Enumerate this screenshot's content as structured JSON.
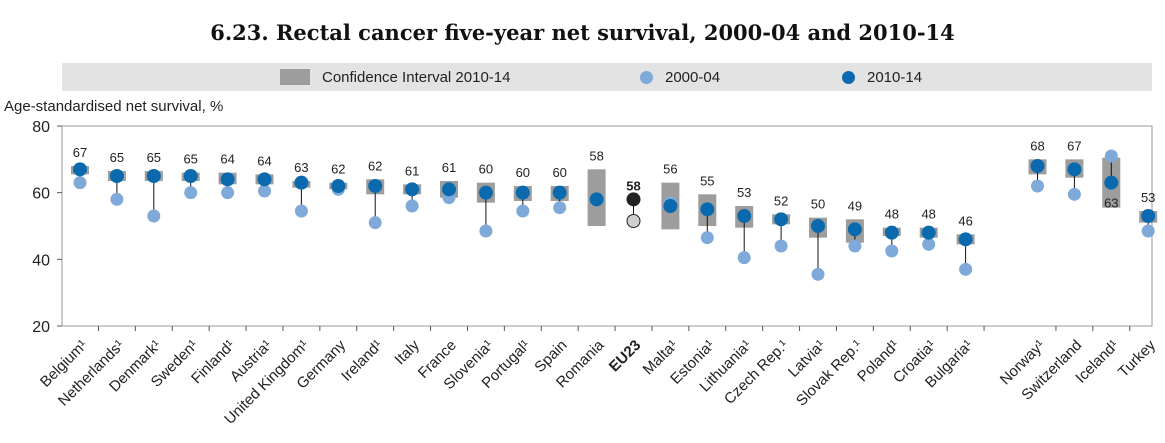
{
  "title": "6.23. Rectal cancer five-year net survival, 2000-04 and 2010-14",
  "legend": {
    "ci_label": "Confidence Interval 2010-14",
    "s1_label": "2000-04",
    "s2_label": "2010-14"
  },
  "colors": {
    "ci": "#9d9d9d",
    "s2000": "#7ea9d8",
    "s2010": "#0b6aad",
    "eu2010": "#222222",
    "eu2000": "#cfcfcf",
    "legend_bg": "#e3e3e3",
    "plot_bg": "#ffffff"
  },
  "chart_data": {
    "type": "scatter",
    "title": "6.23. Rectal cancer five-year net survival, 2000-04 and 2010-14",
    "ylabel": "Age-standardised net survival, %",
    "ylim": [
      20,
      80
    ],
    "yticks": [
      20,
      40,
      60,
      80
    ],
    "grid": false,
    "legend_position": "top",
    "highlight_category": "EU23",
    "categories": [
      "Belgium¹",
      "Netherlands¹",
      "Denmark¹",
      "Sweden¹",
      "Finland¹",
      "Austria¹",
      "United Kingdom¹",
      "Germany",
      "Ireland¹",
      "Italy",
      "France",
      "Slovenia¹",
      "Portugal¹",
      "Spain",
      "Romania",
      "EU23",
      "Malta¹",
      "Estonia¹",
      "Lithuania¹",
      "Czech Rep.¹",
      "Latvia¹",
      "Slovak Rep.¹",
      "Poland¹",
      "Croatia¹",
      "Bulgaria¹",
      "Norway¹",
      "Switzerland",
      "Iceland¹",
      "Turkey"
    ],
    "gap_after_index": 24,
    "series": [
      {
        "name": "2000-04",
        "values": [
          63,
          58,
          53,
          60,
          60,
          60.5,
          54.5,
          61,
          51,
          56,
          58.5,
          48.5,
          54.5,
          55.5,
          null,
          51.5,
          57,
          46.5,
          40.5,
          44,
          35.5,
          44,
          42.5,
          44.5,
          37,
          62,
          59.5,
          71,
          48.5
        ]
      },
      {
        "name": "2010-14",
        "values": [
          67,
          65,
          65,
          65,
          64,
          64,
          63,
          62,
          62,
          61,
          61,
          60,
          60,
          60,
          58,
          58,
          56,
          55,
          53,
          52,
          50,
          49,
          48,
          48,
          46,
          68,
          67,
          63,
          53
        ]
      },
      {
        "name": "Confidence Interval 2010-14",
        "low": [
          65.5,
          63.5,
          63.5,
          63.5,
          62.5,
          62.5,
          61.5,
          61,
          59.5,
          59.5,
          58.5,
          57,
          57.5,
          57.5,
          50,
          58,
          49,
          50,
          49.5,
          50.5,
          46.5,
          45,
          47,
          46.5,
          44.5,
          65.5,
          64.5,
          55.5,
          51
        ],
        "high": [
          68,
          66.5,
          66.5,
          66,
          66,
          65.5,
          63.5,
          63,
          64,
          62.5,
          63.5,
          63,
          62,
          62,
          67,
          58,
          63,
          59.5,
          56,
          53.5,
          52.5,
          52,
          49.5,
          49.5,
          47.5,
          70,
          70,
          70.5,
          54.5
        ]
      }
    ],
    "data_labels": [
      "67",
      "65",
      "65",
      "65",
      "64",
      "64",
      "63",
      "62",
      "62",
      "61",
      "61",
      "60",
      "60",
      "60",
      "58",
      "58",
      "56",
      "55",
      "53",
      "52",
      "50",
      "49",
      "48",
      "48",
      "46",
      "68",
      "67",
      "63",
      "53"
    ]
  }
}
